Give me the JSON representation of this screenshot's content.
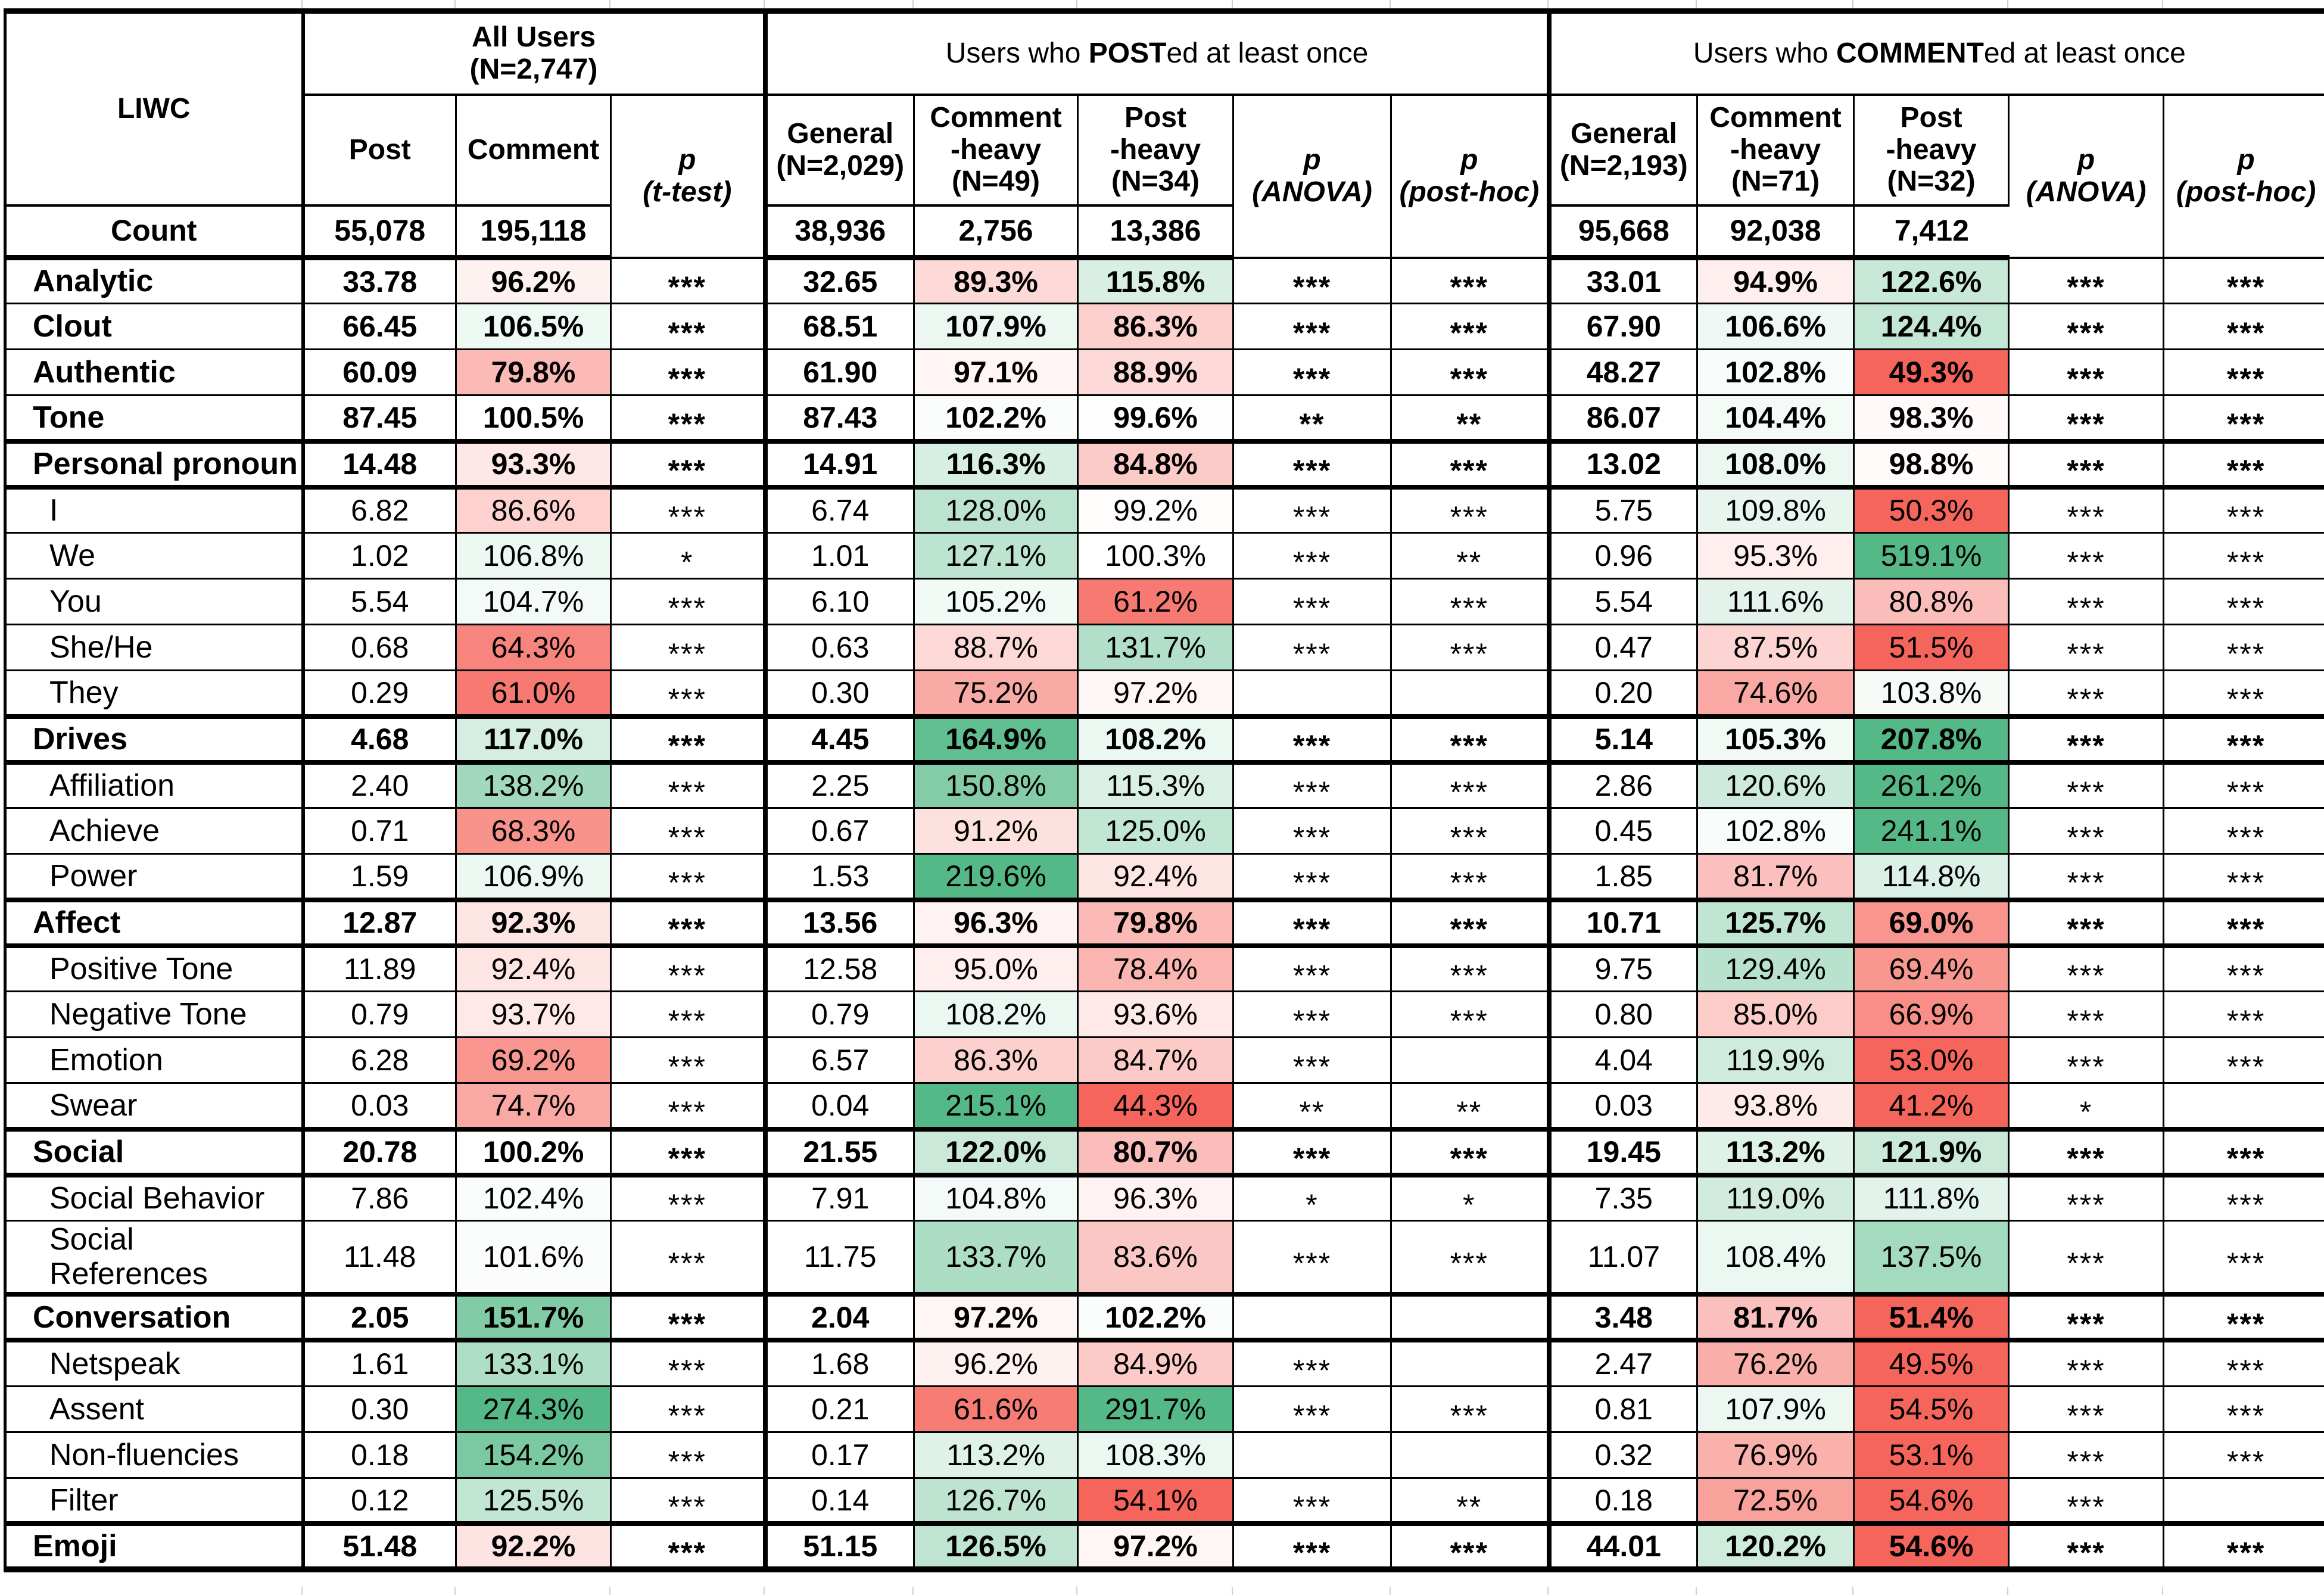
{
  "meta": {
    "description": "LIWC linguistic category comparison table with red-green percentage heatmap",
    "colors": {
      "full_green": "#55b987",
      "full_red": "#f5655c",
      "text": "#000000",
      "grid": "#000000"
    }
  },
  "header": {
    "liwc": "LIWC",
    "count_label": "Count",
    "group1": {
      "title": "All Users\n(N=2,747)",
      "cols": [
        "Post",
        "Comment",
        "p\n(t-test)"
      ],
      "counts": [
        "55,078",
        "195,118"
      ]
    },
    "group2": {
      "title_prefix": "Users who ",
      "title_strong": "POST",
      "title_suffix": "ed at least once",
      "cols": [
        "General\n(N=2,029)",
        "Comment\n-heavy\n(N=49)",
        "Post\n-heavy\n(N=34)",
        "p\n(ANOVA)",
        "p\n(post-hoc)"
      ],
      "counts": [
        "38,936",
        "2,756",
        "13,386"
      ]
    },
    "group3": {
      "title_prefix": "Users who ",
      "title_strong": "COMMENT",
      "title_suffix": "ed at least once",
      "cols": [
        "General\n(N=2,193)",
        "Comment\n-heavy\n(N=71)",
        "Post\n-heavy\n(N=32)",
        "p\n(ANOVA)",
        "p\n(post-hoc)"
      ],
      "counts": [
        "95,668",
        "92,038",
        "7,412"
      ]
    }
  },
  "col_types": [
    "mean",
    "pct",
    "sig",
    "mean",
    "pct",
    "pct",
    "sig",
    "sig",
    "mean",
    "pct",
    "pct",
    "sig",
    "sig"
  ],
  "rows": [
    {
      "label": "Analytic",
      "bold": true,
      "section": false,
      "v": [
        "33.78",
        "96.2%",
        "***",
        "32.65",
        "89.3%",
        "115.8%",
        "***",
        "***",
        "33.01",
        "94.9%",
        "122.6%",
        "***",
        "***"
      ]
    },
    {
      "label": "Clout",
      "bold": true,
      "section": false,
      "v": [
        "66.45",
        "106.5%",
        "***",
        "68.51",
        "107.9%",
        "86.3%",
        "***",
        "***",
        "67.90",
        "106.6%",
        "124.4%",
        "***",
        "***"
      ]
    },
    {
      "label": "Authentic",
      "bold": true,
      "section": false,
      "v": [
        "60.09",
        "79.8%",
        "***",
        "61.90",
        "97.1%",
        "88.9%",
        "***",
        "***",
        "48.27",
        "102.8%",
        "49.3%",
        "***",
        "***"
      ]
    },
    {
      "label": "Tone",
      "bold": true,
      "section": false,
      "v": [
        "87.45",
        "100.5%",
        "***",
        "87.43",
        "102.2%",
        "99.6%",
        "**",
        "**",
        "86.07",
        "104.4%",
        "98.3%",
        "***",
        "***"
      ]
    },
    {
      "label": "Personal pronoun",
      "bold": true,
      "section": true,
      "v": [
        "14.48",
        "93.3%",
        "***",
        "14.91",
        "116.3%",
        "84.8%",
        "***",
        "***",
        "13.02",
        "108.0%",
        "98.8%",
        "***",
        "***"
      ]
    },
    {
      "label": "I",
      "bold": false,
      "section": true,
      "v": [
        "6.82",
        "86.6%",
        "***",
        "6.74",
        "128.0%",
        "99.2%",
        "***",
        "***",
        "5.75",
        "109.8%",
        "50.3%",
        "***",
        "***"
      ]
    },
    {
      "label": "We",
      "bold": false,
      "section": false,
      "v": [
        "1.02",
        "106.8%",
        "*",
        "1.01",
        "127.1%",
        "100.3%",
        "***",
        "**",
        "0.96",
        "95.3%",
        "519.1%",
        "***",
        "***"
      ]
    },
    {
      "label": "You",
      "bold": false,
      "section": false,
      "v": [
        "5.54",
        "104.7%",
        "***",
        "6.10",
        "105.2%",
        "61.2%",
        "***",
        "***",
        "5.54",
        "111.6%",
        "80.8%",
        "***",
        "***"
      ]
    },
    {
      "label": "She/He",
      "bold": false,
      "section": false,
      "v": [
        "0.68",
        "64.3%",
        "***",
        "0.63",
        "88.7%",
        "131.7%",
        "***",
        "***",
        "0.47",
        "87.5%",
        "51.5%",
        "***",
        "***"
      ]
    },
    {
      "label": "They",
      "bold": false,
      "section": false,
      "v": [
        "0.29",
        "61.0%",
        "***",
        "0.30",
        "75.2%",
        "97.2%",
        "",
        "",
        "0.20",
        "74.6%",
        "103.8%",
        "***",
        "***"
      ]
    },
    {
      "label": "Drives",
      "bold": true,
      "section": true,
      "v": [
        "4.68",
        "117.0%",
        "***",
        "4.45",
        "164.9%",
        "108.2%",
        "***",
        "***",
        "5.14",
        "105.3%",
        "207.8%",
        "***",
        "***"
      ]
    },
    {
      "label": "Affiliation",
      "bold": false,
      "section": true,
      "v": [
        "2.40",
        "138.2%",
        "***",
        "2.25",
        "150.8%",
        "115.3%",
        "***",
        "***",
        "2.86",
        "120.6%",
        "261.2%",
        "***",
        "***"
      ]
    },
    {
      "label": "Achieve",
      "bold": false,
      "section": false,
      "v": [
        "0.71",
        "68.3%",
        "***",
        "0.67",
        "91.2%",
        "125.0%",
        "***",
        "***",
        "0.45",
        "102.8%",
        "241.1%",
        "***",
        "***"
      ]
    },
    {
      "label": "Power",
      "bold": false,
      "section": false,
      "v": [
        "1.59",
        "106.9%",
        "***",
        "1.53",
        "219.6%",
        "92.4%",
        "***",
        "***",
        "1.85",
        "81.7%",
        "114.8%",
        "***",
        "***"
      ]
    },
    {
      "label": "Affect",
      "bold": true,
      "section": true,
      "v": [
        "12.87",
        "92.3%",
        "***",
        "13.56",
        "96.3%",
        "79.8%",
        "***",
        "***",
        "10.71",
        "125.7%",
        "69.0%",
        "***",
        "***"
      ]
    },
    {
      "label": "Positive Tone",
      "bold": false,
      "section": true,
      "v": [
        "11.89",
        "92.4%",
        "***",
        "12.58",
        "95.0%",
        "78.4%",
        "***",
        "***",
        "9.75",
        "129.4%",
        "69.4%",
        "***",
        "***"
      ]
    },
    {
      "label": "Negative Tone",
      "bold": false,
      "section": false,
      "v": [
        "0.79",
        "93.7%",
        "***",
        "0.79",
        "108.2%",
        "93.6%",
        "***",
        "***",
        "0.80",
        "85.0%",
        "66.9%",
        "***",
        "***"
      ]
    },
    {
      "label": "Emotion",
      "bold": false,
      "section": false,
      "v": [
        "6.28",
        "69.2%",
        "***",
        "6.57",
        "86.3%",
        "84.7%",
        "***",
        "",
        "4.04",
        "119.9%",
        "53.0%",
        "***",
        "***"
      ]
    },
    {
      "label": "Swear",
      "bold": false,
      "section": false,
      "v": [
        "0.03",
        "74.7%",
        "***",
        "0.04",
        "215.1%",
        "44.3%",
        "**",
        "**",
        "0.03",
        "93.8%",
        "41.2%",
        "*",
        ""
      ]
    },
    {
      "label": "Social",
      "bold": true,
      "section": true,
      "v": [
        "20.78",
        "100.2%",
        "***",
        "21.55",
        "122.0%",
        "80.7%",
        "***",
        "***",
        "19.45",
        "113.2%",
        "121.9%",
        "***",
        "***"
      ]
    },
    {
      "label": "Social Behavior",
      "bold": false,
      "section": true,
      "v": [
        "7.86",
        "102.4%",
        "***",
        "7.91",
        "104.8%",
        "96.3%",
        "*",
        "*",
        "7.35",
        "119.0%",
        "111.8%",
        "***",
        "***"
      ]
    },
    {
      "label": "Social References",
      "bold": false,
      "section": false,
      "v": [
        "11.48",
        "101.6%",
        "***",
        "11.75",
        "133.7%",
        "83.6%",
        "***",
        "***",
        "11.07",
        "108.4%",
        "137.5%",
        "***",
        "***"
      ]
    },
    {
      "label": "Conversation",
      "bold": true,
      "section": true,
      "v": [
        "2.05",
        "151.7%",
        "***",
        "2.04",
        "97.2%",
        "102.2%",
        "",
        "",
        "3.48",
        "81.7%",
        "51.4%",
        "***",
        "***"
      ]
    },
    {
      "label": "Netspeak",
      "bold": false,
      "section": true,
      "v": [
        "1.61",
        "133.1%",
        "***",
        "1.68",
        "96.2%",
        "84.9%",
        "***",
        "",
        "2.47",
        "76.2%",
        "49.5%",
        "***",
        "***"
      ]
    },
    {
      "label": "Assent",
      "bold": false,
      "section": false,
      "v": [
        "0.30",
        "274.3%",
        "***",
        "0.21",
        "61.6%",
        "291.7%",
        "***",
        "***",
        "0.81",
        "107.9%",
        "54.5%",
        "***",
        "***"
      ]
    },
    {
      "label": "Non-fluencies",
      "bold": false,
      "section": false,
      "v": [
        "0.18",
        "154.2%",
        "***",
        "0.17",
        "113.2%",
        "108.3%",
        "",
        "",
        "0.32",
        "76.9%",
        "53.1%",
        "***",
        "***"
      ]
    },
    {
      "label": "Filter",
      "bold": false,
      "section": false,
      "v": [
        "0.12",
        "125.5%",
        "***",
        "0.14",
        "126.7%",
        "54.1%",
        "***",
        "**",
        "0.18",
        "72.5%",
        "54.6%",
        "***",
        ""
      ]
    },
    {
      "label": "Emoji",
      "bold": true,
      "section": true,
      "v": [
        "51.48",
        "92.2%",
        "***",
        "51.15",
        "126.5%",
        "97.2%",
        "***",
        "***",
        "44.01",
        "120.2%",
        "54.6%",
        "***",
        "***"
      ]
    }
  ]
}
